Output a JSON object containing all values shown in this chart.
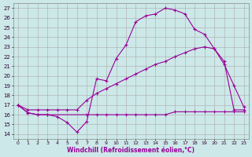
{
  "xlabel": "Windchill (Refroidissement éolien,°C)",
  "bg_color": "#cce8e8",
  "line_color": "#990099",
  "grid_color": "#aaaaaa",
  "xlim": [
    -0.5,
    23.5
  ],
  "ylim": [
    13.5,
    27.5
  ],
  "xticks": [
    0,
    1,
    2,
    3,
    4,
    5,
    6,
    7,
    8,
    9,
    10,
    11,
    12,
    13,
    14,
    15,
    16,
    17,
    18,
    19,
    20,
    21,
    22,
    23
  ],
  "yticks": [
    14,
    15,
    16,
    17,
    18,
    19,
    20,
    21,
    22,
    23,
    24,
    25,
    26,
    27
  ],
  "series1_x": [
    0,
    1,
    2,
    3,
    4,
    5,
    6,
    7,
    8,
    9,
    10,
    11,
    12,
    13,
    14,
    15,
    16,
    17,
    18,
    19,
    20,
    21,
    22,
    23
  ],
  "series1_y": [
    17.0,
    16.2,
    16.0,
    16.0,
    15.8,
    15.2,
    14.2,
    15.3,
    19.7,
    19.5,
    21.8,
    23.2,
    25.6,
    26.2,
    26.4,
    27.0,
    26.8,
    26.4,
    24.8,
    24.3,
    22.8,
    21.2,
    19.0,
    16.8
  ],
  "series2_x": [
    0,
    1,
    2,
    3,
    7,
    8,
    9,
    10,
    11,
    12,
    13,
    14,
    15,
    16,
    17,
    18,
    19,
    20,
    21,
    22,
    23
  ],
  "series2_y": [
    17.0,
    16.2,
    16.0,
    16.0,
    16.0,
    16.0,
    16.0,
    16.0,
    16.0,
    16.0,
    16.0,
    16.0,
    16.0,
    16.3,
    16.3,
    16.3,
    16.3,
    16.3,
    16.3,
    16.3,
    16.3
  ],
  "series3_x": [
    0,
    1,
    2,
    3,
    4,
    5,
    6,
    7,
    8,
    9,
    10,
    11,
    12,
    13,
    14,
    15,
    16,
    17,
    18,
    19,
    20,
    21,
    22,
    23
  ],
  "series3_y": [
    17.0,
    16.5,
    16.5,
    16.5,
    16.5,
    16.5,
    16.5,
    17.5,
    18.2,
    18.7,
    19.2,
    19.7,
    20.2,
    20.7,
    21.2,
    21.5,
    22.0,
    22.4,
    22.8,
    23.0,
    22.8,
    21.5,
    16.5,
    16.5
  ],
  "marker": "+"
}
